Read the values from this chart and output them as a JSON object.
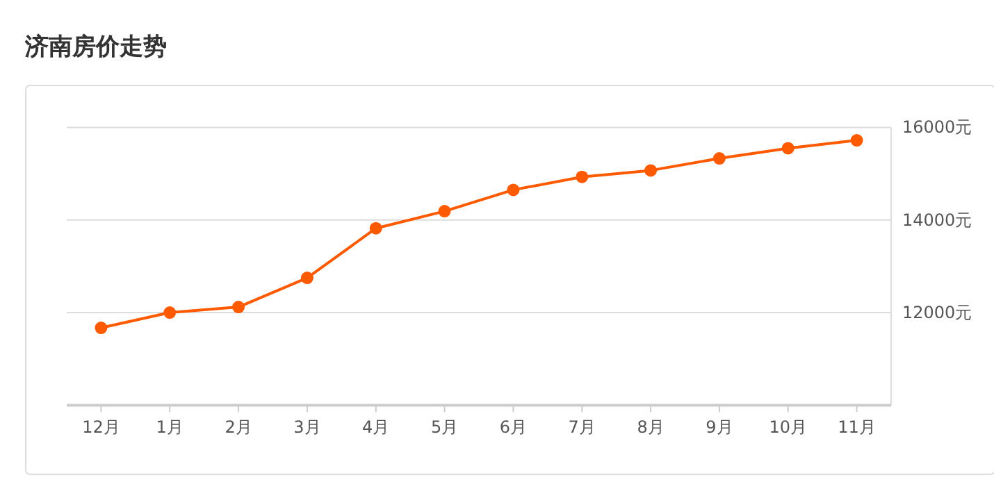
{
  "chart_data": {
    "type": "line",
    "title": "济南房价走势",
    "categories": [
      "12月",
      "1月",
      "2月",
      "3月",
      "4月",
      "5月",
      "6月",
      "7月",
      "8月",
      "9月",
      "10月",
      "11月"
    ],
    "series": [
      {
        "color": "#ff5a00",
        "values": [
          11670,
          12000,
          12120,
          12750,
          13820,
          14190,
          14650,
          14930,
          15070,
          15330,
          15550,
          15720
        ]
      }
    ],
    "ylim": [
      10000,
      16000
    ],
    "yticks": [
      {
        "value": 12000,
        "label": "12000元"
      },
      {
        "value": 14000,
        "label": "14000元"
      },
      {
        "value": 16000,
        "label": "16000元"
      }
    ],
    "grid": "y",
    "marker": "circle",
    "line_style": "solid"
  }
}
